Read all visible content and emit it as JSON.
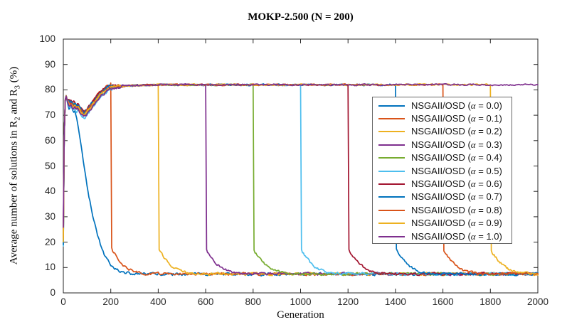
{
  "chart_data": {
    "type": "line",
    "title": "MOKP-2.500 (N = 200)",
    "xlabel": "Generation",
    "ylabel": {
      "pre": "Average number of solutions in R",
      "sub1": "2",
      "mid": " and R",
      "sub2": "3",
      "post": " (%)"
    },
    "xlim": [
      0,
      2000
    ],
    "ylim": [
      0,
      100
    ],
    "xticks": [
      0,
      200,
      400,
      600,
      800,
      1000,
      1200,
      1400,
      1600,
      1800,
      2000
    ],
    "yticks": [
      0,
      10,
      20,
      30,
      40,
      50,
      60,
      70,
      80,
      90,
      100
    ],
    "grid": false,
    "axis_color": "#262626",
    "plateau_value": 82,
    "settled_value": 7.5,
    "legend": {
      "position": "right-middle",
      "label_prefix": "NSGAII/OSD (",
      "alpha_symbol": "α",
      "separator": " = ",
      "suffix": ")",
      "border_color": "#676767"
    },
    "series": [
      {
        "label": "NSGAII/OSD (α = 0.0)",
        "alpha": "0.0",
        "color": "#0072BD",
        "profile": "early-decay",
        "drop_generation": null,
        "start_value": 19.5,
        "final_value": 7.4
      },
      {
        "label": "NSGAII/OSD (α = 0.1)",
        "alpha": "0.1",
        "color": "#D95319",
        "profile": "plateau-then-drop",
        "drop_generation": 200,
        "start_value": 21,
        "final_value": 7.5
      },
      {
        "label": "NSGAII/OSD (α = 0.2)",
        "alpha": "0.2",
        "color": "#EDB120",
        "profile": "plateau-then-drop",
        "drop_generation": 400,
        "start_value": 20,
        "final_value": 7.5
      },
      {
        "label": "NSGAII/OSD (α = 0.3)",
        "alpha": "0.3",
        "color": "#7E2F8E",
        "profile": "plateau-then-drop",
        "drop_generation": 600,
        "start_value": 27,
        "final_value": 7.5
      },
      {
        "label": "NSGAII/OSD (α = 0.4)",
        "alpha": "0.4",
        "color": "#77AC30",
        "profile": "plateau-then-drop",
        "drop_generation": 800,
        "start_value": 20.5,
        "final_value": 7.5
      },
      {
        "label": "NSGAII/OSD (α = 0.5)",
        "alpha": "0.5",
        "color": "#4DBEEE",
        "profile": "plateau-then-drop",
        "drop_generation": 1000,
        "start_value": 18.5,
        "final_value": 7.5
      },
      {
        "label": "NSGAII/OSD (α = 0.6)",
        "alpha": "0.6",
        "color": "#A2142F",
        "profile": "plateau-then-drop",
        "drop_generation": 1200,
        "start_value": 25,
        "final_value": 7.5
      },
      {
        "label": "NSGAII/OSD (α = 0.7)",
        "alpha": "0.7",
        "color": "#0072BD",
        "profile": "plateau-then-drop",
        "drop_generation": 1400,
        "start_value": 19,
        "final_value": 7.5
      },
      {
        "label": "NSGAII/OSD (α = 0.8)",
        "alpha": "0.8",
        "color": "#D95319",
        "profile": "plateau-then-drop",
        "drop_generation": 1600,
        "start_value": 21.5,
        "final_value": 7.6
      },
      {
        "label": "NSGAII/OSD (α = 0.9)",
        "alpha": "0.9",
        "color": "#EDB120",
        "profile": "plateau-then-drop",
        "drop_generation": 1800,
        "start_value": 20,
        "final_value": 8
      },
      {
        "label": "NSGAII/OSD (α = 1.0)",
        "alpha": "1.0",
        "color": "#7E2F8E",
        "profile": "no-drop",
        "drop_generation": null,
        "start_value": 26,
        "final_value": 82
      }
    ],
    "shape_keypoints": {
      "head": [
        [
          0,
          20
        ],
        [
          2,
          50
        ],
        [
          5,
          68
        ],
        [
          8,
          76
        ],
        [
          12,
          77.5
        ],
        [
          18,
          75.5
        ],
        [
          25,
          74.2
        ],
        [
          32,
          74.6
        ],
        [
          40,
          73.5
        ],
        [
          48,
          73.8
        ],
        [
          55,
          72.8
        ],
        [
          62,
          73.2
        ],
        [
          70,
          72
        ],
        [
          78,
          71
        ],
        [
          87,
          70.2
        ],
        [
          93,
          70.6
        ],
        [
          100,
          71.3
        ],
        [
          110,
          72.5
        ],
        [
          120,
          73.8
        ],
        [
          130,
          75
        ],
        [
          140,
          76.3
        ],
        [
          150,
          77.4
        ],
        [
          160,
          78.4
        ],
        [
          170,
          79.2
        ],
        [
          180,
          79.9
        ],
        [
          190,
          80.5
        ],
        [
          200,
          80.9
        ],
        [
          215,
          81.1
        ],
        [
          230,
          81.3
        ],
        [
          250,
          81.5
        ],
        [
          280,
          81.7
        ],
        [
          320,
          81.8
        ],
        [
          400,
          82
        ],
        [
          2000,
          82
        ]
      ],
      "alpha0": [
        [
          0,
          19.5
        ],
        [
          2,
          50
        ],
        [
          5,
          68
        ],
        [
          8,
          76
        ],
        [
          12,
          77.5
        ],
        [
          18,
          75.5
        ],
        [
          25,
          74
        ],
        [
          32,
          74.5
        ],
        [
          40,
          73
        ],
        [
          48,
          71
        ],
        [
          55,
          69
        ],
        [
          62,
          66
        ],
        [
          70,
          61
        ],
        [
          78,
          56
        ],
        [
          85,
          51
        ],
        [
          92,
          47
        ],
        [
          100,
          42.5
        ],
        [
          108,
          38
        ],
        [
          115,
          35
        ],
        [
          122,
          31.5
        ],
        [
          130,
          28
        ],
        [
          138,
          25.5
        ],
        [
          146,
          22.5
        ],
        [
          154,
          20
        ],
        [
          162,
          17.5
        ],
        [
          170,
          15.5
        ],
        [
          180,
          13.8
        ],
        [
          190,
          12.5
        ],
        [
          200,
          11
        ],
        [
          212,
          10
        ],
        [
          225,
          9.2
        ],
        [
          240,
          8.6
        ],
        [
          260,
          8
        ],
        [
          285,
          7.6
        ],
        [
          320,
          7.4
        ],
        [
          2000,
          7.4
        ]
      ],
      "tail_relative": [
        [
          0,
          82
        ],
        [
          3,
          17.2
        ],
        [
          8,
          16
        ],
        [
          15,
          15.2
        ],
        [
          22,
          14.2
        ],
        [
          30,
          13.2
        ],
        [
          40,
          12.2
        ],
        [
          52,
          11
        ],
        [
          65,
          10
        ],
        [
          80,
          9.2
        ],
        [
          95,
          8.6
        ],
        [
          115,
          8.1
        ],
        [
          140,
          7.7
        ],
        [
          170,
          7.5
        ],
        [
          2000,
          7.4
        ]
      ]
    }
  }
}
